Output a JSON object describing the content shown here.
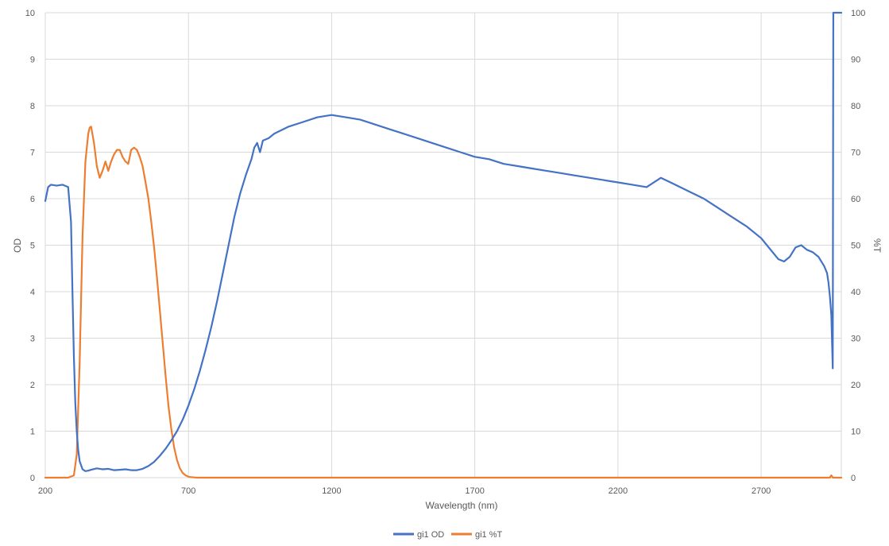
{
  "chart_data": {
    "type": "line",
    "title": "",
    "xlabel": "Wavelength (nm)",
    "ylabel": "OD",
    "y2label": "%T",
    "xlim": [
      200,
      2980
    ],
    "ylim": [
      0,
      10
    ],
    "y2lim": [
      0,
      100
    ],
    "x_ticks": [
      200,
      700,
      1200,
      1700,
      2200,
      2700
    ],
    "y_ticks": [
      0,
      1,
      2,
      3,
      4,
      5,
      6,
      7,
      8,
      9,
      10
    ],
    "y2_ticks": [
      0,
      10,
      20,
      30,
      40,
      50,
      60,
      70,
      80,
      90,
      100
    ],
    "grid": true,
    "legend_position": "bottom",
    "series": [
      {
        "name": "gi1 OD",
        "axis": "left",
        "color": "#4472C4",
        "x": [
          200,
          210,
          220,
          240,
          260,
          280,
          290,
          295,
          300,
          305,
          310,
          315,
          320,
          330,
          340,
          350,
          360,
          380,
          400,
          420,
          440,
          460,
          480,
          500,
          520,
          540,
          560,
          580,
          600,
          620,
          640,
          660,
          680,
          700,
          720,
          740,
          760,
          780,
          800,
          820,
          840,
          860,
          880,
          900,
          920,
          930,
          940,
          950,
          960,
          980,
          1000,
          1050,
          1100,
          1150,
          1200,
          1250,
          1300,
          1350,
          1400,
          1450,
          1500,
          1550,
          1600,
          1650,
          1700,
          1750,
          1800,
          1850,
          1900,
          1950,
          2000,
          2050,
          2100,
          2150,
          2200,
          2250,
          2300,
          2350,
          2400,
          2450,
          2500,
          2550,
          2600,
          2650,
          2700,
          2720,
          2740,
          2760,
          2780,
          2800,
          2820,
          2840,
          2860,
          2880,
          2900,
          2920,
          2930,
          2935,
          2940,
          2945,
          2950,
          2952,
          2960,
          2970,
          2980
        ],
        "y": [
          5.95,
          6.25,
          6.3,
          6.28,
          6.3,
          6.25,
          5.5,
          4.0,
          2.6,
          1.6,
          1.0,
          0.6,
          0.35,
          0.18,
          0.14,
          0.15,
          0.17,
          0.2,
          0.18,
          0.19,
          0.16,
          0.17,
          0.18,
          0.16,
          0.16,
          0.19,
          0.25,
          0.34,
          0.47,
          0.62,
          0.8,
          1.0,
          1.25,
          1.55,
          1.9,
          2.3,
          2.75,
          3.25,
          3.8,
          4.4,
          5.0,
          5.6,
          6.1,
          6.5,
          6.85,
          7.1,
          7.2,
          7.0,
          7.25,
          7.3,
          7.4,
          7.55,
          7.65,
          7.75,
          7.8,
          7.75,
          7.7,
          7.6,
          7.5,
          7.4,
          7.3,
          7.2,
          7.1,
          7.0,
          6.9,
          6.85,
          6.75,
          6.7,
          6.65,
          6.6,
          6.55,
          6.5,
          6.45,
          6.4,
          6.35,
          6.3,
          6.25,
          6.45,
          6.3,
          6.15,
          6.0,
          5.8,
          5.6,
          5.4,
          5.15,
          5.0,
          4.85,
          4.7,
          4.65,
          4.75,
          4.95,
          5.0,
          4.9,
          4.85,
          4.75,
          4.55,
          4.4,
          4.2,
          3.9,
          3.5,
          2.35,
          10,
          10,
          10,
          10
        ]
      },
      {
        "name": "gi1 %T",
        "axis": "right",
        "color": "#ED7D31",
        "x": [
          200,
          280,
          300,
          310,
          320,
          330,
          340,
          350,
          355,
          360,
          370,
          380,
          390,
          400,
          410,
          420,
          430,
          440,
          450,
          460,
          470,
          480,
          490,
          500,
          510,
          520,
          530,
          540,
          550,
          560,
          570,
          580,
          590,
          600,
          610,
          620,
          630,
          640,
          650,
          660,
          670,
          680,
          690,
          700,
          710,
          720,
          730,
          740,
          750,
          760,
          770,
          780,
          800,
          850,
          900,
          1000,
          1500,
          2000,
          2500,
          2900,
          2940,
          2945,
          2950,
          2960,
          2980
        ],
        "y": [
          0,
          0,
          0.5,
          5,
          25,
          52,
          68,
          74,
          75.3,
          75.5,
          72,
          67,
          64.5,
          66,
          68,
          66,
          68,
          69.5,
          70.5,
          70.5,
          69,
          68,
          67.5,
          70.5,
          71,
          70.5,
          69,
          67,
          63.5,
          60,
          55,
          49.5,
          43,
          36,
          29,
          22,
          15.5,
          10.5,
          6.5,
          3.8,
          2.0,
          1.0,
          0.5,
          0.2,
          0.1,
          0.05,
          0,
          0,
          0,
          0,
          0,
          0,
          0,
          0,
          0,
          0,
          0,
          0,
          0,
          0,
          0,
          0.5,
          0,
          0,
          0
        ]
      }
    ]
  }
}
